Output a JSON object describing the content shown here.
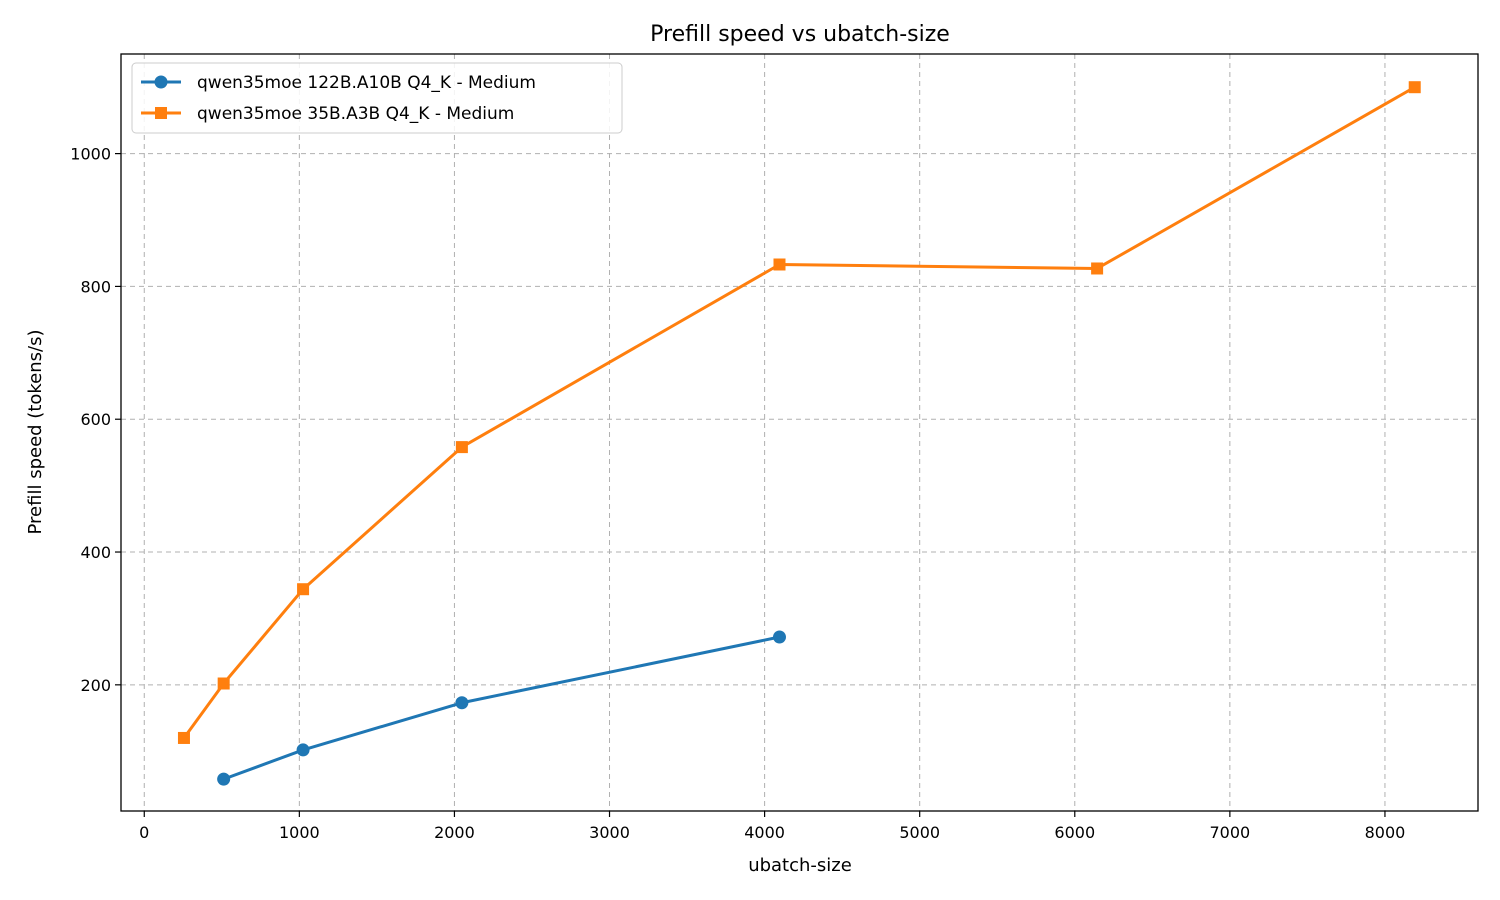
{
  "chart_data": {
    "type": "line",
    "title": "Prefill speed vs ubatch-size",
    "xlabel": "ubatch-size",
    "ylabel": "Prefill speed (tokens/s)",
    "xlim": [
      -150,
      8600
    ],
    "ylim": [
      10,
      1150
    ],
    "xticks": [
      0,
      1000,
      2000,
      3000,
      4000,
      5000,
      6000,
      7000,
      8000
    ],
    "yticks": [
      200,
      400,
      600,
      800,
      1000
    ],
    "grid": true,
    "legend_position": "upper-left",
    "series": [
      {
        "name": "qwen35moe 122B.A10B Q4_K - Medium",
        "color": "#1f77b4",
        "marker": "circle",
        "x": [
          512,
          1024,
          2048,
          4096
        ],
        "y": [
          58,
          102,
          173,
          272
        ]
      },
      {
        "name": "qwen35moe 35B.A3B Q4_K - Medium",
        "color": "#ff7f0e",
        "marker": "square",
        "x": [
          256,
          512,
          1024,
          2048,
          4096,
          6144,
          8192
        ],
        "y": [
          120,
          202,
          344,
          558,
          833,
          827,
          1100
        ]
      }
    ]
  }
}
